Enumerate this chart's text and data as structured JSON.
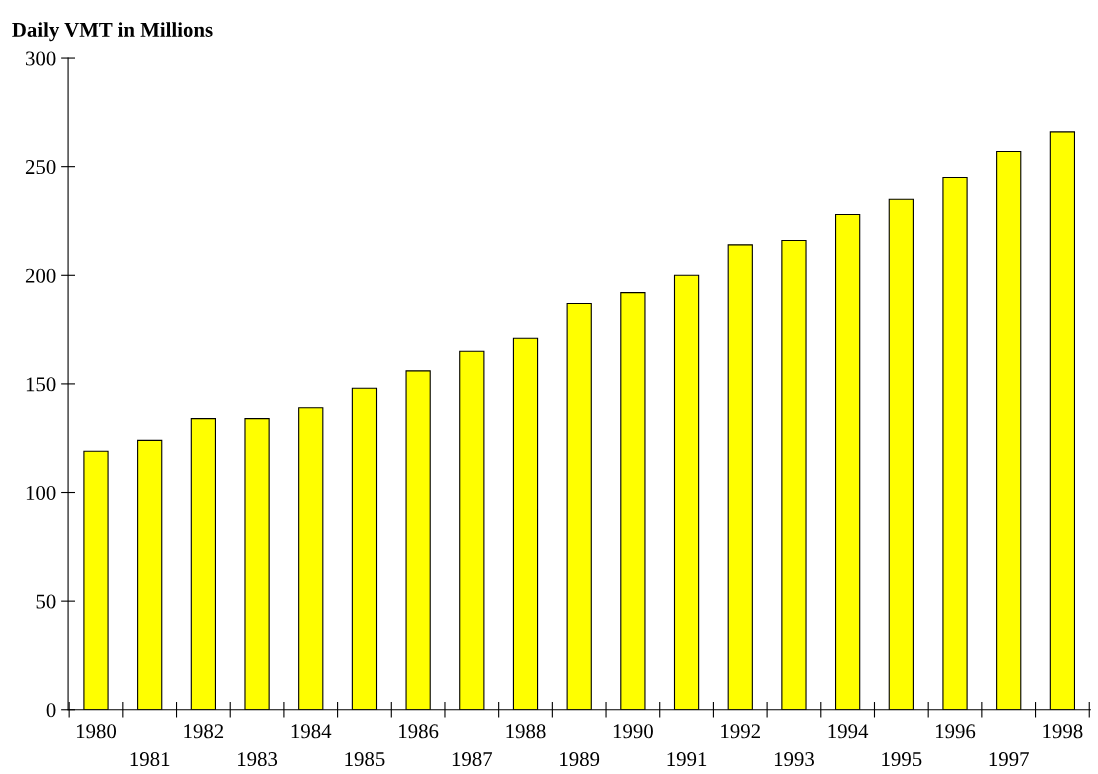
{
  "chart_data": {
    "type": "bar",
    "title": "Daily VMT in Millions",
    "categories": [
      "1980",
      "1981",
      "1982",
      "1983",
      "1984",
      "1985",
      "1986",
      "1987",
      "1988",
      "1989",
      "1990",
      "1991",
      "1992",
      "1993",
      "1994",
      "1995",
      "1996",
      "1997",
      "1998"
    ],
    "values": [
      119,
      124,
      134,
      134,
      139,
      148,
      156,
      165,
      171,
      187,
      192,
      200,
      214,
      216,
      228,
      235,
      245,
      257,
      266
    ],
    "color": "#ffff00",
    "ylim": [
      0,
      300
    ],
    "yticks": [
      0,
      50,
      100,
      150,
      200,
      250,
      300
    ],
    "grid": false,
    "legend": false
  }
}
